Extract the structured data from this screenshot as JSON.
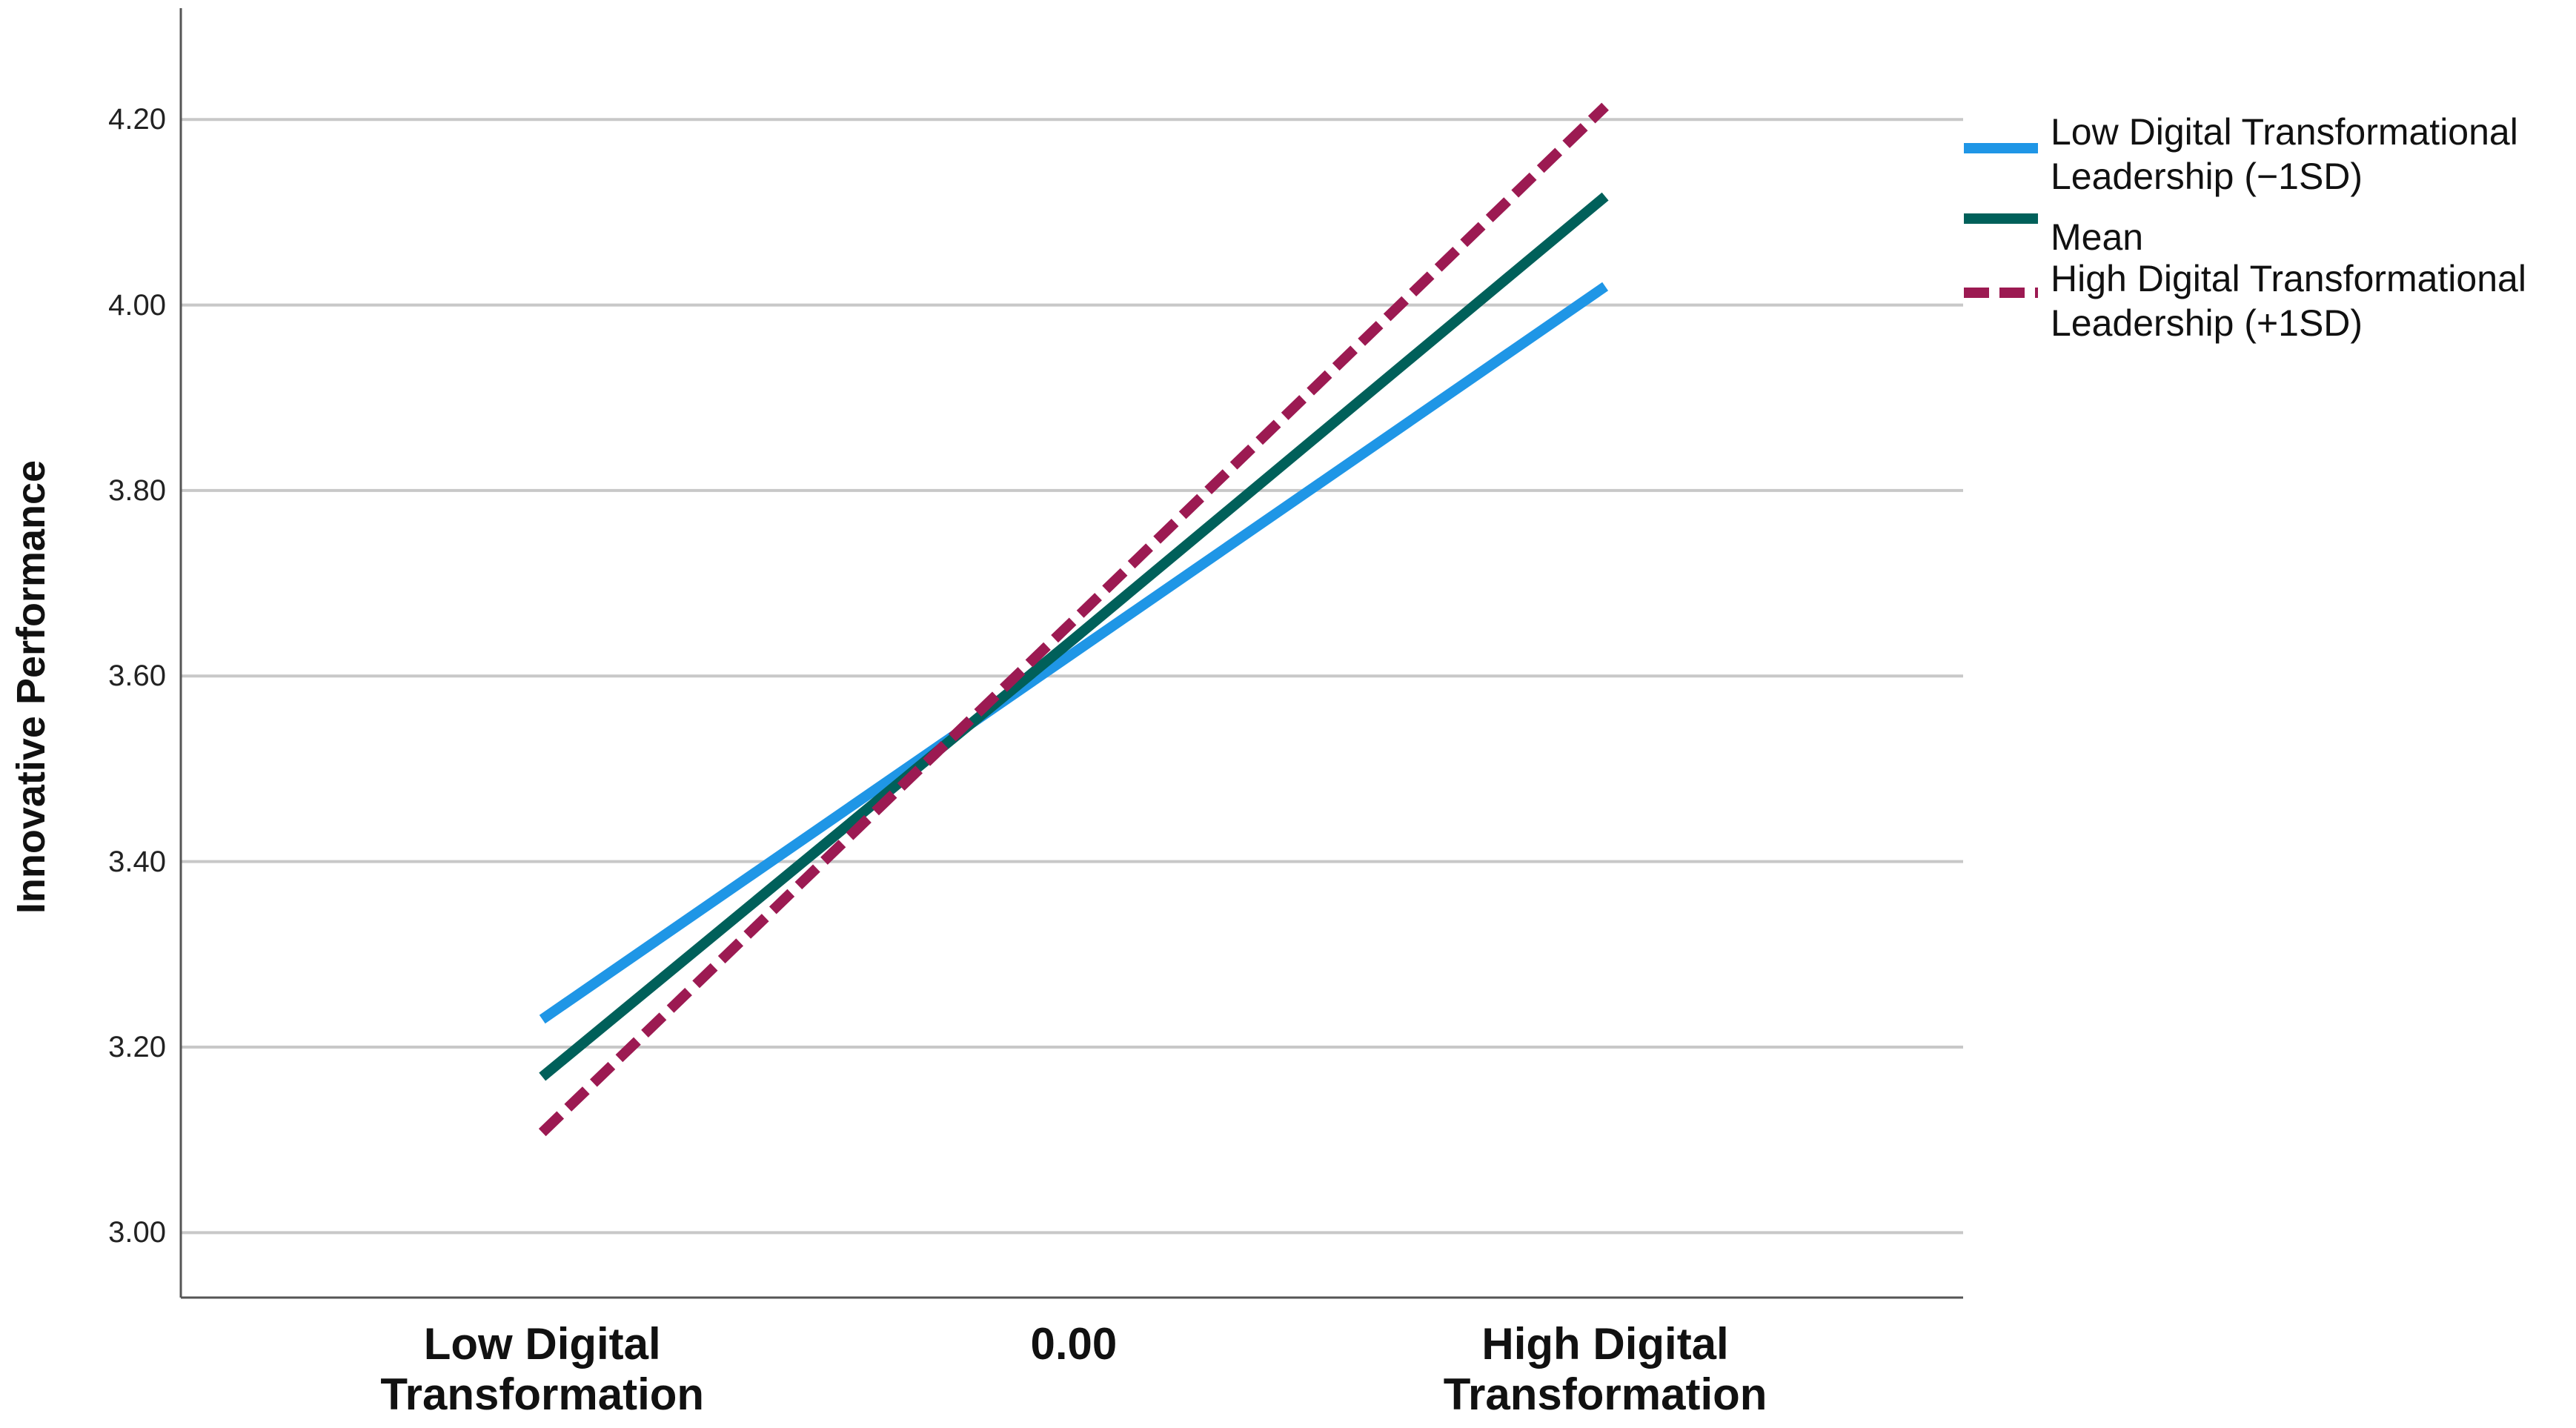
{
  "chart_data": {
    "type": "line",
    "y_label": "Innovative Performance",
    "categories": [
      "Low Digital Transformation",
      "0.00",
      "High Digital Transformation"
    ],
    "series": [
      {
        "name": "Low Digital Transformational Leadership (−1SD)",
        "color": "#1f96e6",
        "line_style": "solid",
        "values": [
          3.23,
          3.625,
          4.02
        ]
      },
      {
        "name": "Mean",
        "color": "#00605a",
        "line_style": "solid",
        "values": [
          3.168,
          3.64,
          4.117
        ]
      },
      {
        "name": "High Digital Transformational Leadership (+1SD)",
        "color": "#9c1a52",
        "line_style": "dashed",
        "values": [
          3.108,
          3.66,
          4.214
        ]
      }
    ],
    "ylim": [
      2.93,
      4.32
    ],
    "yticks": [
      {
        "value": 3.0,
        "label": "3.00"
      },
      {
        "value": 3.2,
        "label": "3.20"
      },
      {
        "value": 3.4,
        "label": "3.40"
      },
      {
        "value": 3.6,
        "label": "3.60"
      },
      {
        "value": 3.8,
        "label": "3.80"
      },
      {
        "value": 4.0,
        "label": "4.00"
      },
      {
        "value": 4.2,
        "label": "4.20"
      }
    ],
    "grid": true,
    "legend_position": "right"
  }
}
